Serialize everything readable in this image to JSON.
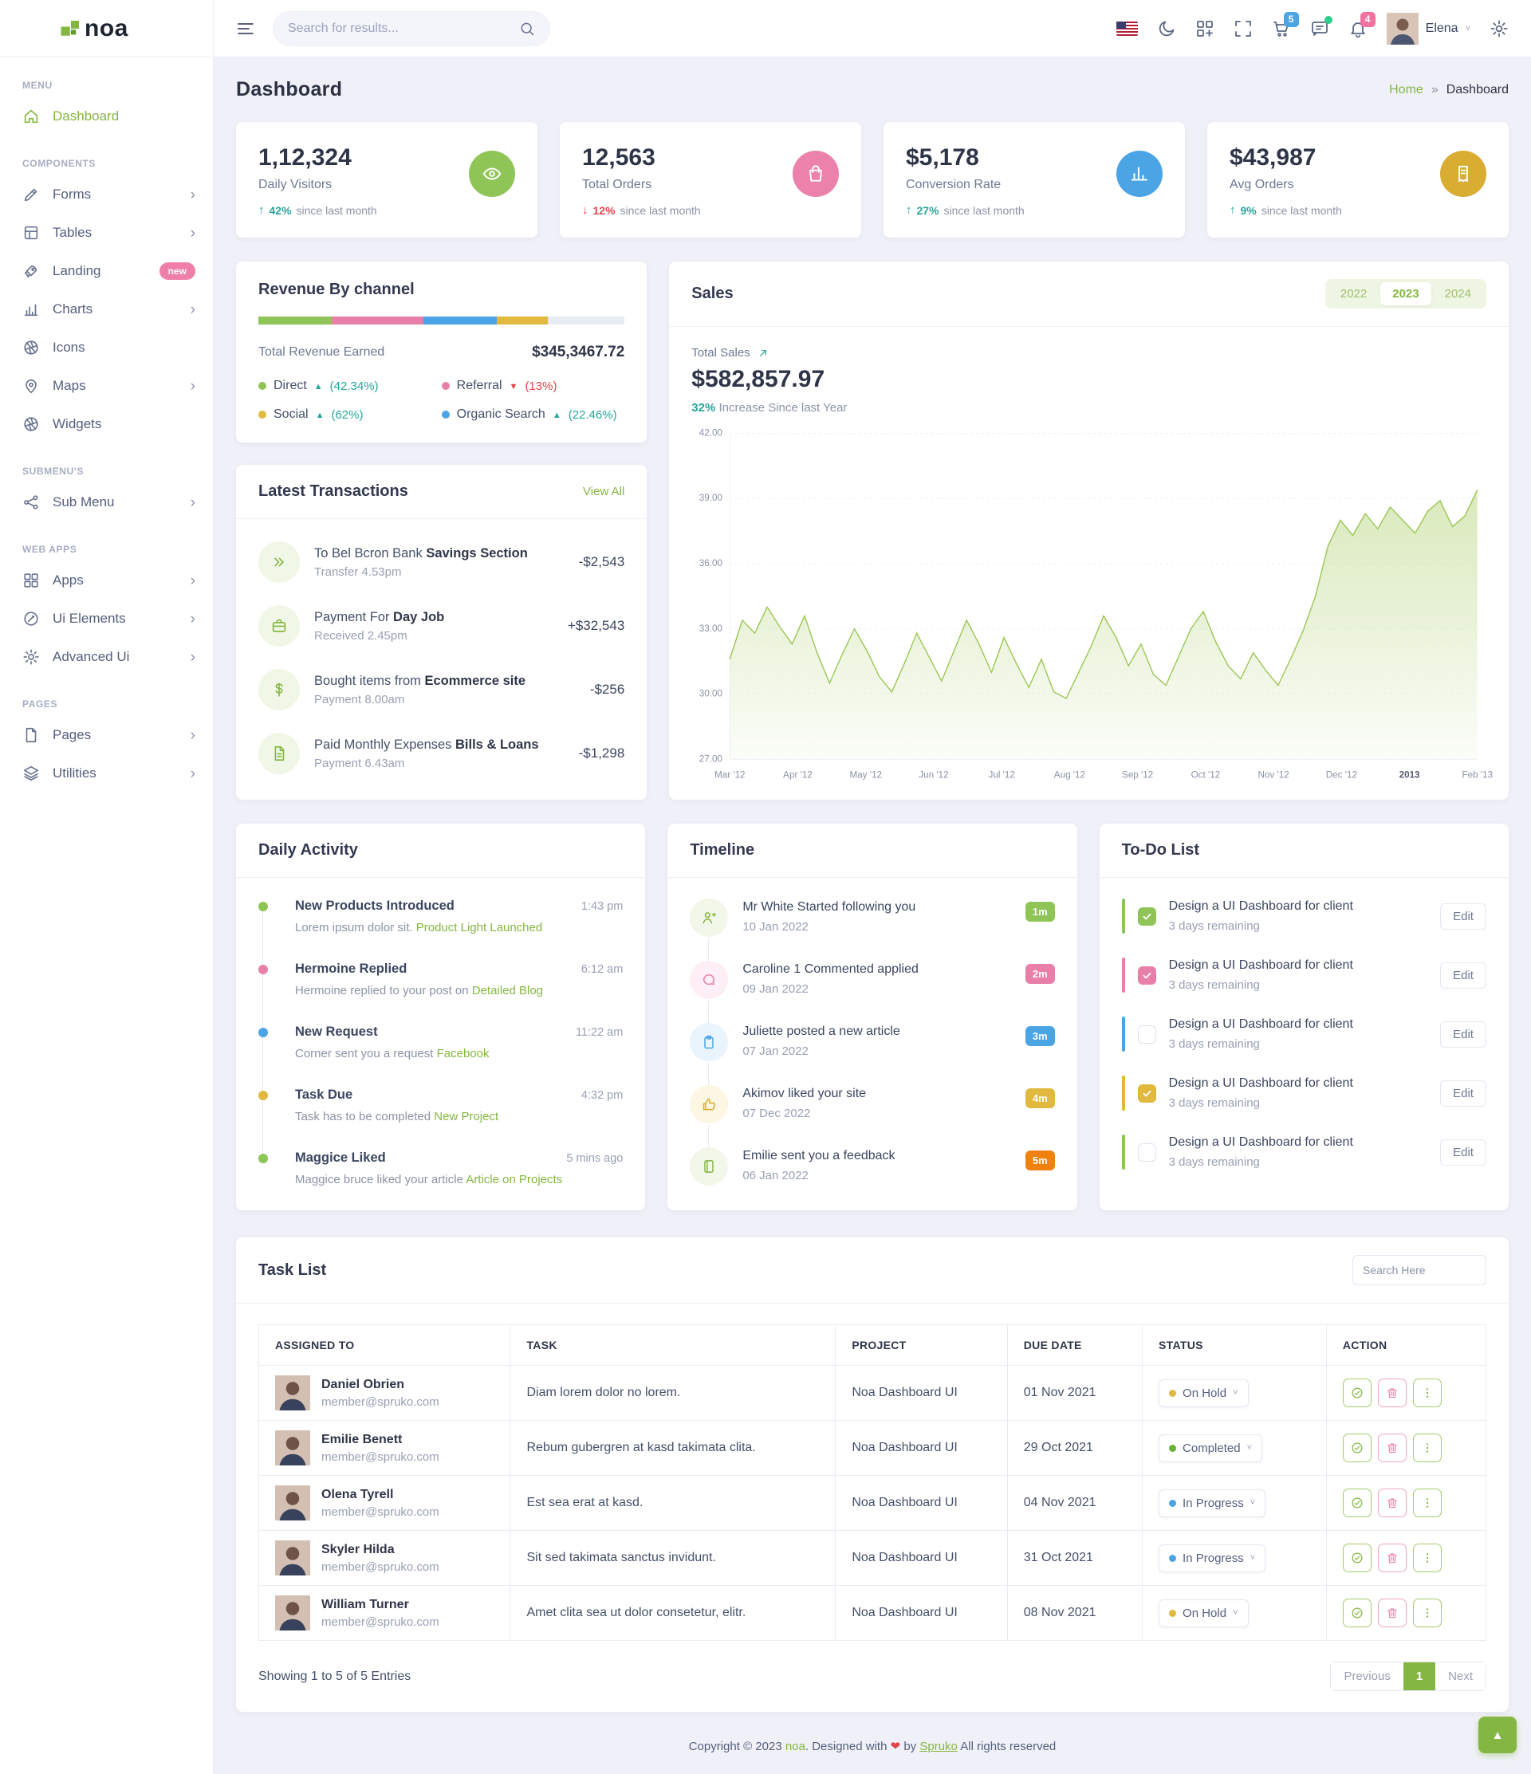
{
  "brand": {
    "name": "noa"
  },
  "topbar": {
    "search_placeholder": "Search for results...",
    "cart_badge": "5",
    "bell_badge": "4",
    "user_name": "Elena"
  },
  "sidebar": {
    "sections": [
      {
        "title": "MENU",
        "items": [
          {
            "label": "Dashboard",
            "icon": "home",
            "state": "active",
            "chev": ""
          }
        ]
      },
      {
        "title": "COMPONENTS",
        "items": [
          {
            "label": "Forms",
            "icon": "pencil",
            "chev": "›"
          },
          {
            "label": "Tables",
            "icon": "table",
            "chev": "›"
          },
          {
            "label": "Landing",
            "icon": "rocket",
            "badge": "new",
            "chev": ""
          },
          {
            "label": "Charts",
            "icon": "bars",
            "chev": "›"
          },
          {
            "label": "Icons",
            "icon": "aperture",
            "chev": ""
          },
          {
            "label": "Maps",
            "icon": "pin",
            "chev": "›"
          },
          {
            "label": "Widgets",
            "icon": "aperture",
            "chev": ""
          }
        ]
      },
      {
        "title": "SUBMENU'S",
        "items": [
          {
            "label": "Sub Menu",
            "icon": "share",
            "chev": "›"
          }
        ]
      },
      {
        "title": "WEB APPS",
        "items": [
          {
            "label": "Apps",
            "icon": "grid",
            "chev": "›"
          },
          {
            "label": "Ui Elements",
            "icon": "ui",
            "chev": "›"
          },
          {
            "label": "Advanced Ui",
            "icon": "gear",
            "chev": "›"
          }
        ]
      },
      {
        "title": "PAGES",
        "items": [
          {
            "label": "Pages",
            "icon": "page",
            "chev": "›"
          },
          {
            "label": "Utilities",
            "icon": "layers",
            "chev": "›"
          }
        ]
      }
    ]
  },
  "page": {
    "title": "Dashboard",
    "bc_home": "Home",
    "bc_sep": "»",
    "bc_current": "Dashboard"
  },
  "stats": [
    {
      "value": "1,12,324",
      "label": "Daily Visitors",
      "dir": "up",
      "pct": "42%",
      "note": "since last month",
      "icon": "eye",
      "color": "#8fc556"
    },
    {
      "value": "12,563",
      "label": "Total Orders",
      "dir": "down",
      "pct": "12%",
      "note": "since last month",
      "icon": "bag",
      "color": "#ec82ab"
    },
    {
      "value": "$5,178",
      "label": "Conversion Rate",
      "dir": "up",
      "pct": "27%",
      "note": "since last month",
      "icon": "chartbars",
      "color": "#4ba5e5"
    },
    {
      "value": "$43,987",
      "label": "Avg Orders",
      "dir": "up",
      "pct": "9%",
      "note": "since last month",
      "icon": "receipt",
      "color": "#d9ac32"
    }
  ],
  "revenue": {
    "title": "Revenue By channel",
    "total_label": "Total Revenue Earned",
    "total_value": "$345,3467.72",
    "bar": [
      {
        "color": "#8fc556",
        "pct": "20%"
      },
      {
        "color": "#e87fa8",
        "pct": "25%"
      },
      {
        "color": "#4ba5e5",
        "pct": "20%"
      },
      {
        "color": "#e0b93e",
        "pct": "14%"
      },
      {
        "color": "#e9ebf3",
        "pct": "21%"
      }
    ],
    "channels": [
      {
        "name": "Direct",
        "value": "(42.34%)",
        "trend": "up",
        "dot": "#8fc556"
      },
      {
        "name": "Referral",
        "value": "(13%)",
        "trend": "down",
        "dot": "#e87fa8"
      },
      {
        "name": "Social",
        "value": "(62%)",
        "trend": "up",
        "dot": "#e0b93e"
      },
      {
        "name": "Organic Search",
        "value": "(22.46%)",
        "trend": "up",
        "dot": "#4ba5e5"
      }
    ]
  },
  "transactions": {
    "title": "Latest Transactions",
    "view_all": "View All",
    "items": [
      {
        "icon": "chevrons",
        "title_normal": "To Bel Bcron Bank ",
        "title_bold": "Savings Section",
        "sub": "Transfer 4.53pm",
        "amount": "-$2,543"
      },
      {
        "icon": "briefcase",
        "title_normal": "Payment For ",
        "title_bold": "Day Job",
        "sub": "Received 2.45pm",
        "amount": "+$32,543"
      },
      {
        "icon": "dollar",
        "title_normal": "Bought items from ",
        "title_bold": "Ecommerce site",
        "sub": "Payment 8.00am",
        "amount": "-$256"
      },
      {
        "icon": "file",
        "title_normal": "Paid Monthly Expenses ",
        "title_bold": "Bills & Loans",
        "sub": "Payment 6.43am",
        "amount": "-$1,298"
      }
    ]
  },
  "sales": {
    "title": "Sales",
    "years": [
      {
        "label": "2022",
        "state": ""
      },
      {
        "label": "2023",
        "state": "active"
      },
      {
        "label": "2024",
        "state": ""
      }
    ],
    "total_label": "Total Sales",
    "total_value": "$582,857.97",
    "sub_pct": "32%",
    "sub_rest": " Increase Since last Year"
  },
  "chart_data": {
    "type": "area",
    "title": "Sales",
    "x": [
      "Mar '12",
      "Apr '12",
      "May '12",
      "Jun '12",
      "Jul '12",
      "Aug '12",
      "Sep '12",
      "Oct '12",
      "Nov '12",
      "Dec '12",
      "2013",
      "Feb '13"
    ],
    "ylim": [
      27,
      42
    ],
    "yticks": [
      27,
      30,
      33,
      36,
      39,
      42
    ],
    "grid": "dashed-horizontal",
    "legend": "none",
    "series": [
      {
        "name": "Total Sales",
        "color": "#9cc653",
        "values": [
          31.6,
          33.4,
          32.8,
          34.0,
          33.1,
          32.3,
          33.6,
          31.9,
          30.5,
          31.8,
          33.0,
          32.0,
          30.8,
          30.1,
          31.4,
          32.8,
          31.7,
          30.6,
          32.0,
          33.4,
          32.3,
          31.0,
          32.6,
          31.4,
          30.3,
          31.6,
          30.1,
          29.8,
          31.0,
          32.2,
          33.6,
          32.6,
          31.3,
          32.3,
          30.9,
          30.4,
          31.7,
          33.0,
          33.8,
          32.4,
          31.3,
          30.7,
          31.9,
          31.1,
          30.4,
          31.6,
          32.9,
          34.5,
          36.8,
          38.0,
          37.3,
          38.3,
          37.6,
          38.6,
          38.0,
          37.4,
          38.4,
          38.9,
          37.7,
          38.2,
          39.4
        ]
      }
    ]
  },
  "daily_activity": {
    "title": "Daily Activity",
    "items": [
      {
        "dot": "#8fc556",
        "title": "New Products Introduced",
        "time": "1:43 pm",
        "desc": "Lorem ipsum dolor sit. ",
        "link": "Product Light Launched"
      },
      {
        "dot": "#e87fa8",
        "title": "Hermoine Replied",
        "time": "6:12 am",
        "desc": "Hermoine replied to your post on ",
        "link": "Detailed Blog"
      },
      {
        "dot": "#4ba5e5",
        "title": "New Request",
        "time": "11:22 am",
        "desc": "Corner sent you a request ",
        "link": "Facebook"
      },
      {
        "dot": "#e0b93e",
        "title": "Task Due",
        "time": "4:32 pm",
        "desc": "Task has to be completed ",
        "link": "New Project"
      },
      {
        "dot": "#8fc556",
        "title": "Maggice Liked",
        "time": "5 mins ago",
        "desc": "Maggice bruce liked your article ",
        "link": "Article on Projects"
      }
    ]
  },
  "timeline": {
    "title": "Timeline",
    "items": [
      {
        "icon": "personplus",
        "color": "#84b741",
        "bg": "#f2f7e9",
        "title": "Mr White Started following you",
        "date": "10 Jan 2022",
        "badge": "1m",
        "badge_color": "#8fc556"
      },
      {
        "icon": "chat",
        "color": "#e87fa8",
        "bg": "#fdeff5",
        "title": "Caroline 1 Commented applied",
        "date": "09 Jan 2022",
        "badge": "2m",
        "badge_color": "#e87fa8"
      },
      {
        "icon": "clipboard",
        "color": "#4ba5e5",
        "bg": "#eaf4fd",
        "title": "Juliette posted a new article",
        "date": "07 Jan 2022",
        "badge": "3m",
        "badge_color": "#4ba5e5"
      },
      {
        "icon": "thumb",
        "color": "#d9ac32",
        "bg": "#fdf6e2",
        "title": "Akimov liked your site",
        "date": "07 Dec 2022",
        "badge": "4m",
        "badge_color": "#e0b93e"
      },
      {
        "icon": "book",
        "color": "#84b741",
        "bg": "#f2f7e9",
        "title": "Emilie sent you a feedback",
        "date": "06 Jan 2022",
        "badge": "5m",
        "badge_color": "#f0810f"
      }
    ]
  },
  "todo": {
    "title": "To-Do List",
    "edit_label": "Edit",
    "items": [
      {
        "bar": "#8fc556",
        "check": "checked",
        "check_color": "#8fc556",
        "title": "Design a UI Dashboard for client",
        "sub": "3 days remaining"
      },
      {
        "bar": "#e87fa8",
        "check": "checked",
        "check_color": "#e87fa8",
        "title": "Design a UI Dashboard for client",
        "sub": "3 days remaining"
      },
      {
        "bar": "#4ba5e5",
        "check": "unchecked",
        "title": "Design a UI Dashboard for client",
        "sub": "3 days remaining"
      },
      {
        "bar": "#e0b93e",
        "check": "checked",
        "check_color": "#e0b93e",
        "title": "Design a UI Dashboard for client",
        "sub": "3 days remaining"
      },
      {
        "bar": "#8fc556",
        "check": "unchecked",
        "title": "Design a UI Dashboard for client",
        "sub": "3 days remaining"
      }
    ]
  },
  "task_list": {
    "title": "Task List",
    "search_placeholder": "Search Here",
    "columns": [
      "ASSIGNED TO",
      "TASK",
      "PROJECT",
      "DUE DATE",
      "STATUS",
      "ACTION"
    ],
    "rows": [
      {
        "name": "Daniel Obrien",
        "email": "member@spruko.com",
        "task": "Diam lorem dolor no lorem.",
        "project": "Noa Dashboard UI",
        "due": "01 Nov 2021",
        "status": "On Hold",
        "status_color": "#e0b93e"
      },
      {
        "name": "Emilie Benett",
        "email": "member@spruko.com",
        "task": "Rebum gubergren at kasd takimata clita.",
        "project": "Noa Dashboard UI",
        "due": "29 Oct 2021",
        "status": "Completed",
        "status_color": "#6ab336"
      },
      {
        "name": "Olena Tyrell",
        "email": "member@spruko.com",
        "task": "Est sea erat at kasd.",
        "project": "Noa Dashboard UI",
        "due": "04 Nov 2021",
        "status": "In Progress",
        "status_color": "#4ba5e5"
      },
      {
        "name": "Skyler Hilda",
        "email": "member@spruko.com",
        "task": "Sit sed takimata sanctus invidunt.",
        "project": "Noa Dashboard UI",
        "due": "31 Oct 2021",
        "status": "In Progress",
        "status_color": "#4ba5e5"
      },
      {
        "name": "William Turner",
        "email": "member@spruko.com",
        "task": "Amet clita sea ut dolor consetetur, elitr.",
        "project": "Noa Dashboard UI",
        "due": "08 Nov 2021",
        "status": "On Hold",
        "status_color": "#e0b93e"
      }
    ],
    "showing": "Showing 1 to 5 of 5 Entries",
    "prev": "Previous",
    "page": "1",
    "next": "Next"
  },
  "footer": {
    "pre": "Copyright © 2023 ",
    "brand": "noa",
    "mid": ". Designed with ",
    "heart": "❤",
    "by": " by ",
    "spruko": "Spruko",
    "post": " All rights reserved"
  }
}
